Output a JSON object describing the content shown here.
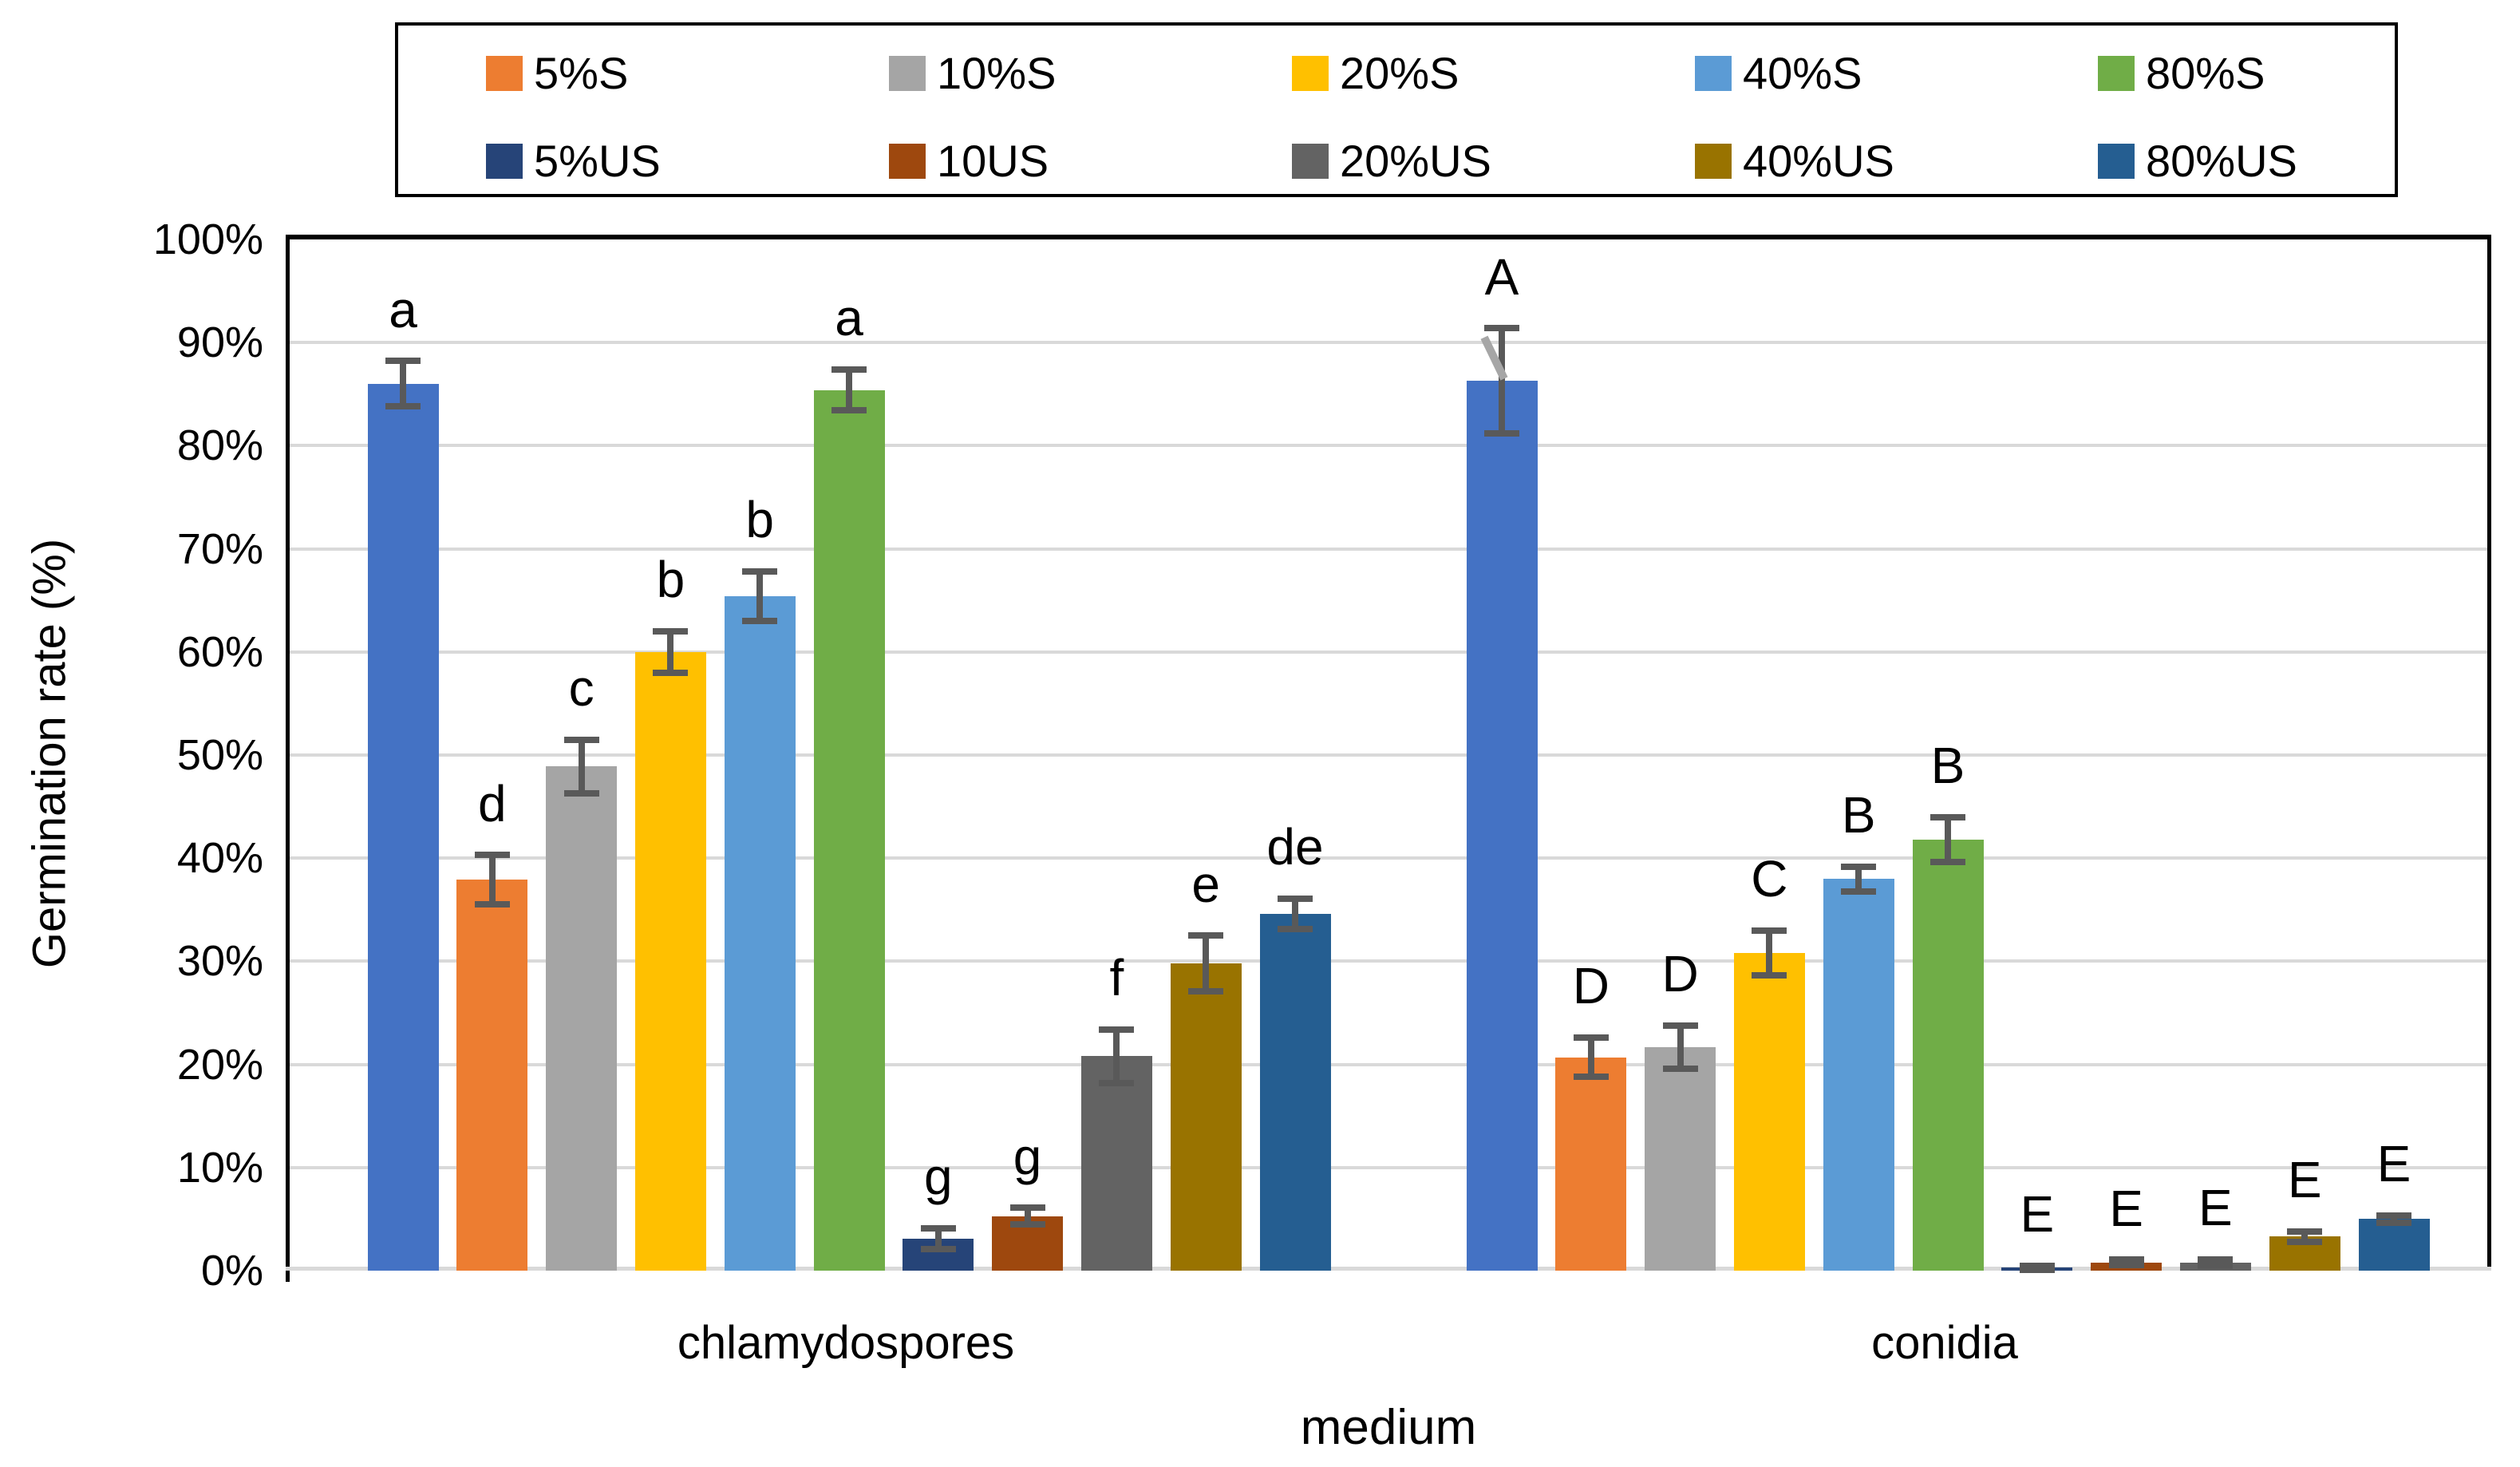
{
  "chart_data": {
    "type": "bar",
    "title": "",
    "xlabel": "medium",
    "ylabel": "Germination rate (%)",
    "ylim": [
      0,
      100
    ],
    "grid": true,
    "legend_position": "top",
    "y_tick_labels": [
      "0%",
      "10%",
      "20%",
      "30%",
      "40%",
      "50%",
      "60%",
      "70%",
      "80%",
      "90%",
      "100%"
    ],
    "categories": [
      "chlamydospores",
      "conidia"
    ],
    "series": [
      {
        "name": "",
        "in_legend": false,
        "color": "#4472C4",
        "values": [
          86.0,
          86.3
        ],
        "errors": [
          2.2,
          5.1
        ],
        "letters": [
          "a",
          "A"
        ]
      },
      {
        "name": "5%S",
        "in_legend": true,
        "color": "#ED7D31",
        "values": [
          37.9,
          20.7
        ],
        "errors": [
          2.4,
          1.9
        ],
        "letters": [
          "d",
          "D"
        ]
      },
      {
        "name": "10%S",
        "in_legend": true,
        "color": "#A5A5A5",
        "values": [
          48.9,
          21.7
        ],
        "errors": [
          2.6,
          2.1
        ],
        "letters": [
          "c",
          "D"
        ]
      },
      {
        "name": "20%S",
        "in_legend": true,
        "color": "#FFC000",
        "values": [
          60.0,
          30.8
        ],
        "errors": [
          2.0,
          2.2
        ],
        "letters": [
          "b",
          "C"
        ]
      },
      {
        "name": "40%S",
        "in_legend": true,
        "color": "#5B9BD5",
        "values": [
          65.4,
          38.0
        ],
        "errors": [
          2.4,
          1.2
        ],
        "letters": [
          "b",
          "B"
        ]
      },
      {
        "name": "80%S",
        "in_legend": true,
        "color": "#70AD47",
        "values": [
          85.4,
          41.8
        ],
        "errors": [
          2.0,
          2.2
        ],
        "letters": [
          "a",
          "B"
        ]
      },
      {
        "name": "5%US",
        "in_legend": true,
        "color": "#264478",
        "values": [
          3.1,
          0.3
        ],
        "errors": [
          1.0,
          0.2
        ],
        "letters": [
          "g",
          "E"
        ]
      },
      {
        "name": "10US",
        "in_legend": true,
        "color": "#9E480E",
        "values": [
          5.3,
          0.8
        ],
        "errors": [
          0.8,
          0.25
        ],
        "letters": [
          "g",
          "E"
        ]
      },
      {
        "name": "20%US",
        "in_legend": true,
        "color": "#636363",
        "values": [
          20.8,
          0.8
        ],
        "errors": [
          2.6,
          0.3
        ],
        "letters": [
          "f",
          "E"
        ]
      },
      {
        "name": "40%US",
        "in_legend": true,
        "color": "#997300",
        "values": [
          29.8,
          3.3
        ],
        "errors": [
          2.7,
          0.5
        ],
        "letters": [
          "e",
          "E"
        ]
      },
      {
        "name": "80%US",
        "in_legend": true,
        "color": "#255E91",
        "values": [
          34.6,
          5.0
        ],
        "errors": [
          1.5,
          0.35
        ],
        "letters": [
          "de",
          "E"
        ]
      }
    ],
    "annotations": {
      "leader_line": {
        "series": 0,
        "category": 1,
        "note": "gray callout line from letter A to bar top"
      }
    },
    "palette": {
      "gridline": "#D9D9D9",
      "baseline": "#D9D9D9",
      "error_bar": "#595959",
      "leader_line": "#A6A6A6",
      "axis_line": "#000000",
      "legend_border": "#000000",
      "background": "#FFFFFF",
      "text": "#000000"
    }
  }
}
